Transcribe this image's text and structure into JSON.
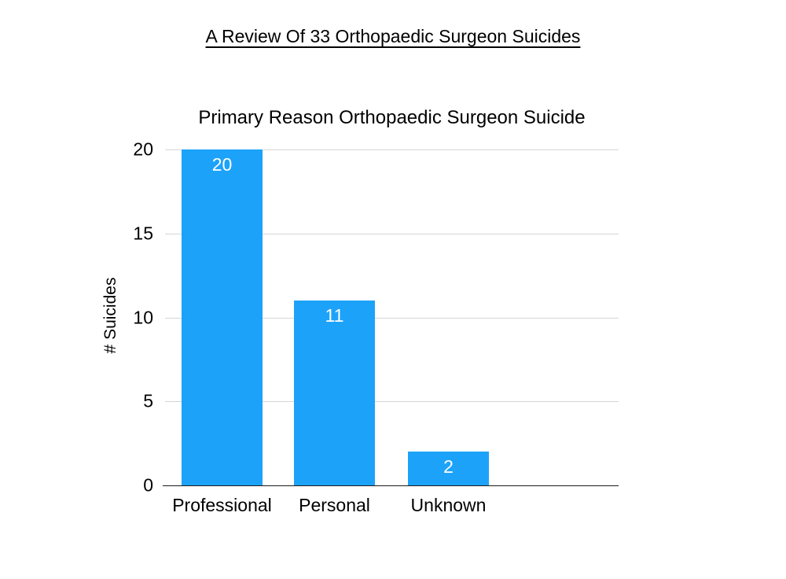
{
  "page": {
    "title": "A Review Of 33 Orthopaedic Surgeon Suicides"
  },
  "chart_data": {
    "type": "bar",
    "title": "Primary Reason Orthopaedic Surgeon Suicide",
    "categories": [
      "Professional",
      "Personal",
      "Unknown"
    ],
    "values": [
      20,
      11,
      2
    ],
    "bar_labels": [
      "20",
      "11",
      "2"
    ],
    "xlabel": "",
    "ylabel": "# Suicides",
    "yticks": [
      0,
      5,
      10,
      15,
      20
    ],
    "ytick_labels": [
      "0",
      "5",
      "10",
      "15",
      "20"
    ],
    "ylim": [
      0,
      20
    ],
    "grid": true,
    "legend": false,
    "colors": {
      "bar": "#1DA2FA",
      "bar_label": "#FFFFFF",
      "gridline": "#D5D5D5",
      "axis": "#1A1A1A",
      "text": "#000000",
      "background": "#FFFFFF"
    }
  }
}
